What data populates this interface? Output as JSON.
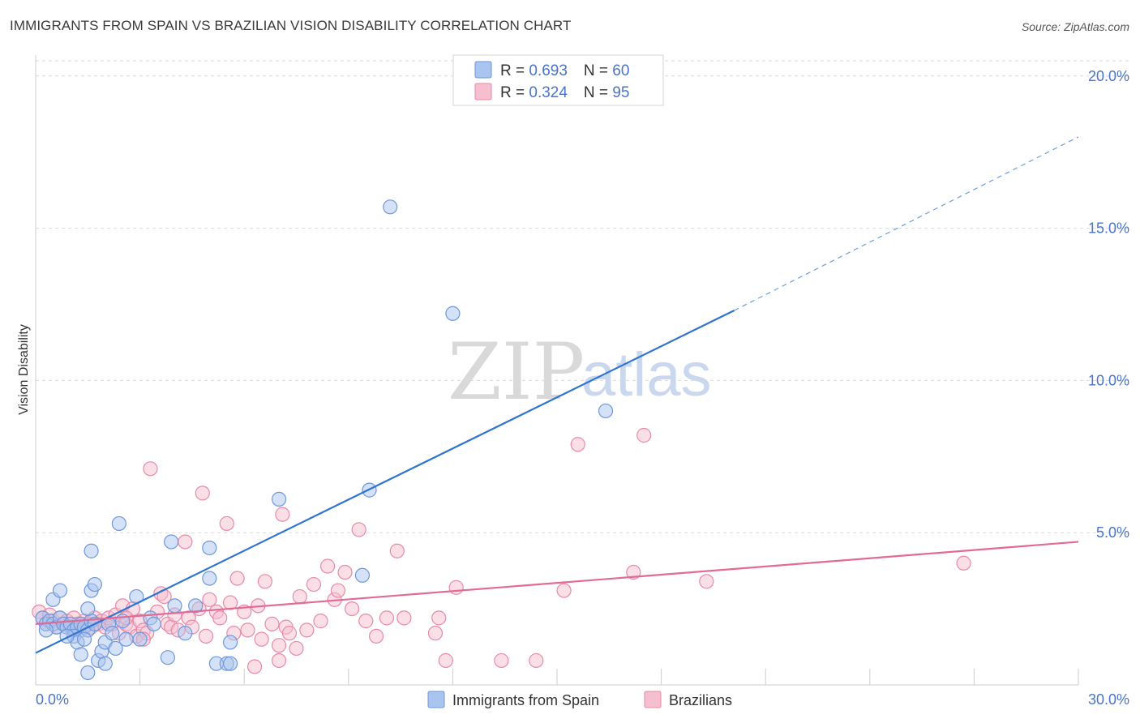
{
  "title": "IMMIGRANTS FROM SPAIN VS BRAZILIAN VISION DISABILITY CORRELATION CHART",
  "source": "Source: ZipAtlas.com",
  "watermark": {
    "zip": "ZIP",
    "atlas": "atlas"
  },
  "colors": {
    "blue_fill": "#a9c4ee",
    "blue_stroke": "#6e98dc",
    "blue_line": "#2f74d0",
    "pink_fill": "#f6bfd0",
    "pink_stroke": "#e88aa8",
    "pink_line": "#e26a96",
    "tick_text": "#4a74c9",
    "grid": "#d9d9d9"
  },
  "legend": {
    "rows": [
      {
        "r_label": "R = ",
        "r_value": "0.693",
        "n_label": "N = ",
        "n_value": "60"
      },
      {
        "r_label": "R = ",
        "r_value": "0.324",
        "n_label": "N = ",
        "n_value": "95"
      }
    ]
  },
  "chart_data": {
    "type": "scatter",
    "title": "IMMIGRANTS FROM SPAIN VS BRAZILIAN VISION DISABILITY CORRELATION CHART",
    "xlabel": "",
    "ylabel": "Vision Disability",
    "xlim": [
      0,
      30
    ],
    "ylim": [
      0,
      20.5
    ],
    "x_tick_labels": [
      "0.0%",
      "30.0%"
    ],
    "y_ticks": [
      5,
      10,
      15,
      20
    ],
    "y_tick_labels": [
      "5.0%",
      "10.0%",
      "15.0%",
      "20.0%"
    ],
    "grid": true,
    "legend_position": "top-center",
    "series": [
      {
        "name": "Immigrants from Spain",
        "r": 0.693,
        "n": 60,
        "trend": {
          "x0": 0,
          "y0": 1.05,
          "x1": 20.1,
          "y1": 12.3,
          "dashed_to_x": 30,
          "dashed_to_y": 18.0
        },
        "points": [
          [
            0.2,
            2.2
          ],
          [
            0.3,
            2.0
          ],
          [
            0.4,
            2.1
          ],
          [
            0.5,
            2.0
          ],
          [
            0.6,
            1.9
          ],
          [
            0.7,
            2.2
          ],
          [
            0.8,
            2.0
          ],
          [
            0.9,
            1.9
          ],
          [
            1.0,
            2.0
          ],
          [
            1.1,
            1.8
          ],
          [
            1.2,
            1.9
          ],
          [
            1.3,
            2.0
          ],
          [
            1.4,
            1.9
          ],
          [
            1.5,
            1.8
          ],
          [
            1.6,
            2.1
          ],
          [
            1.7,
            2.0
          ],
          [
            0.5,
            2.8
          ],
          [
            0.7,
            3.1
          ],
          [
            1.1,
            1.6
          ],
          [
            1.2,
            1.4
          ],
          [
            1.5,
            2.5
          ],
          [
            1.6,
            3.1
          ],
          [
            1.7,
            3.3
          ],
          [
            1.6,
            4.4
          ],
          [
            1.4,
            1.5
          ],
          [
            1.8,
            0.8
          ],
          [
            1.9,
            1.1
          ],
          [
            2.0,
            1.4
          ],
          [
            2.1,
            2.0
          ],
          [
            2.2,
            1.7
          ],
          [
            2.3,
            1.2
          ],
          [
            2.5,
            2.1
          ],
          [
            2.6,
            1.5
          ],
          [
            2.9,
            2.9
          ],
          [
            3.0,
            1.5
          ],
          [
            3.3,
            2.2
          ],
          [
            3.4,
            2.0
          ],
          [
            3.8,
            0.9
          ],
          [
            3.9,
            4.7
          ],
          [
            4.0,
            2.6
          ],
          [
            4.3,
            1.7
          ],
          [
            4.6,
            2.6
          ],
          [
            5.0,
            3.5
          ],
          [
            5.0,
            4.5
          ],
          [
            5.2,
            0.7
          ],
          [
            5.5,
            0.7
          ],
          [
            5.6,
            0.7
          ],
          [
            5.6,
            1.4
          ],
          [
            7.0,
            6.1
          ],
          [
            9.4,
            3.6
          ],
          [
            9.6,
            6.4
          ],
          [
            10.2,
            15.7
          ],
          [
            12.0,
            12.2
          ],
          [
            16.4,
            9.0
          ],
          [
            2.4,
            5.3
          ],
          [
            1.3,
            1.0
          ],
          [
            0.3,
            1.8
          ],
          [
            0.9,
            1.6
          ],
          [
            1.5,
            0.4
          ],
          [
            2.0,
            0.7
          ]
        ]
      },
      {
        "name": "Brazilians",
        "r": 0.324,
        "n": 95,
        "trend": {
          "x0": 0,
          "y0": 2.0,
          "x1": 30,
          "y1": 4.7
        },
        "points": [
          [
            0.1,
            2.4
          ],
          [
            0.2,
            2.2
          ],
          [
            0.3,
            2.0
          ],
          [
            0.4,
            2.3
          ],
          [
            0.5,
            2.1
          ],
          [
            0.6,
            1.9
          ],
          [
            0.7,
            2.2
          ],
          [
            0.8,
            2.0
          ],
          [
            0.9,
            2.1
          ],
          [
            1.0,
            1.9
          ],
          [
            1.1,
            2.2
          ],
          [
            1.2,
            2.0
          ],
          [
            1.3,
            1.8
          ],
          [
            1.4,
            2.1
          ],
          [
            1.5,
            2.0
          ],
          [
            1.6,
            1.9
          ],
          [
            1.7,
            2.2
          ],
          [
            1.8,
            2.0
          ],
          [
            1.9,
            2.1
          ],
          [
            2.0,
            1.9
          ],
          [
            2.1,
            2.2
          ],
          [
            2.2,
            2.0
          ],
          [
            2.3,
            2.3
          ],
          [
            2.4,
            1.7
          ],
          [
            2.5,
            2.6
          ],
          [
            2.6,
            2.0
          ],
          [
            2.7,
            1.9
          ],
          [
            2.8,
            2.5
          ],
          [
            2.9,
            1.6
          ],
          [
            3.0,
            2.1
          ],
          [
            3.1,
            1.8
          ],
          [
            3.2,
            1.7
          ],
          [
            3.3,
            7.1
          ],
          [
            3.5,
            2.4
          ],
          [
            3.6,
            3.0
          ],
          [
            3.7,
            2.9
          ],
          [
            3.8,
            2.0
          ],
          [
            3.9,
            1.9
          ],
          [
            4.0,
            2.3
          ],
          [
            4.1,
            1.8
          ],
          [
            4.3,
            4.7
          ],
          [
            4.4,
            2.2
          ],
          [
            4.5,
            1.9
          ],
          [
            4.7,
            2.5
          ],
          [
            4.8,
            6.3
          ],
          [
            4.9,
            1.6
          ],
          [
            5.0,
            2.8
          ],
          [
            5.2,
            2.4
          ],
          [
            5.3,
            2.2
          ],
          [
            5.5,
            5.3
          ],
          [
            5.6,
            2.7
          ],
          [
            5.7,
            1.7
          ],
          [
            5.8,
            3.5
          ],
          [
            6.0,
            2.4
          ],
          [
            6.1,
            1.8
          ],
          [
            6.3,
            0.6
          ],
          [
            6.4,
            2.6
          ],
          [
            6.5,
            1.5
          ],
          [
            6.6,
            3.4
          ],
          [
            6.8,
            2.0
          ],
          [
            7.0,
            1.3
          ],
          [
            7.1,
            5.6
          ],
          [
            7.2,
            1.9
          ],
          [
            7.3,
            1.7
          ],
          [
            7.5,
            1.2
          ],
          [
            7.6,
            2.9
          ],
          [
            7.8,
            1.8
          ],
          [
            8.0,
            3.3
          ],
          [
            8.2,
            2.1
          ],
          [
            8.4,
            3.9
          ],
          [
            8.6,
            2.8
          ],
          [
            8.7,
            3.1
          ],
          [
            8.9,
            3.7
          ],
          [
            9.1,
            2.5
          ],
          [
            9.3,
            5.1
          ],
          [
            9.5,
            2.1
          ],
          [
            9.8,
            1.6
          ],
          [
            10.1,
            2.2
          ],
          [
            10.4,
            4.4
          ],
          [
            10.6,
            2.2
          ],
          [
            11.5,
            1.7
          ],
          [
            11.6,
            2.2
          ],
          [
            11.8,
            0.8
          ],
          [
            12.1,
            3.2
          ],
          [
            13.4,
            0.8
          ],
          [
            14.4,
            0.8
          ],
          [
            15.2,
            3.1
          ],
          [
            15.6,
            7.9
          ],
          [
            17.2,
            3.7
          ],
          [
            17.5,
            8.2
          ],
          [
            19.3,
            3.4
          ],
          [
            26.7,
            4.0
          ],
          [
            7.0,
            0.8
          ],
          [
            3.1,
            1.5
          ],
          [
            2.6,
            2.2
          ]
        ]
      }
    ]
  }
}
